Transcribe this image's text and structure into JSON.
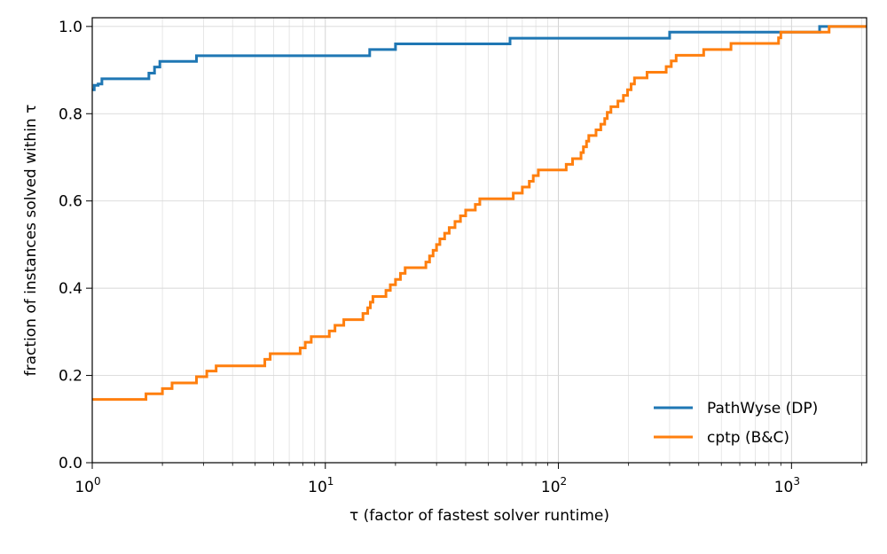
{
  "chart_data": {
    "type": "line",
    "title": "",
    "xlabel": "τ (factor of fastest solver runtime)",
    "ylabel": "fraction of instances solved within τ",
    "xscale": "log",
    "xlim": [
      1,
      2100
    ],
    "ylim": [
      0.0,
      1.02
    ],
    "grid": true,
    "legend_position": "lower-right",
    "x_ticks": [
      {
        "value": 1,
        "base": "10",
        "exp": "0"
      },
      {
        "value": 10,
        "base": "10",
        "exp": "1"
      },
      {
        "value": 100,
        "base": "10",
        "exp": "2"
      },
      {
        "value": 1000,
        "base": "10",
        "exp": "3"
      }
    ],
    "y_ticks": [
      {
        "value": 0.0,
        "label": "0.0"
      },
      {
        "value": 0.2,
        "label": "0.2"
      },
      {
        "value": 0.4,
        "label": "0.4"
      },
      {
        "value": 0.6,
        "label": "0.6"
      },
      {
        "value": 0.8,
        "label": "0.8"
      },
      {
        "value": 1.0,
        "label": "1.0"
      }
    ],
    "series": [
      {
        "name": "PathWyse (DP)",
        "color": "#1f77b4",
        "step": true,
        "points": [
          [
            1.0,
            0.855
          ],
          [
            1.02,
            0.865
          ],
          [
            1.06,
            0.868
          ],
          [
            1.1,
            0.88
          ],
          [
            1.75,
            0.893
          ],
          [
            1.85,
            0.907
          ],
          [
            1.95,
            0.92
          ],
          [
            2.8,
            0.933
          ],
          [
            15.5,
            0.947
          ],
          [
            20,
            0.96
          ],
          [
            62,
            0.973
          ],
          [
            300,
            0.987
          ],
          [
            1320,
            1.0
          ],
          [
            2100,
            1.0
          ]
        ]
      },
      {
        "name": "cptp (B&C)",
        "color": "#ff7f0e",
        "step": true,
        "points": [
          [
            1.0,
            0.145
          ],
          [
            1.7,
            0.158
          ],
          [
            2.0,
            0.17
          ],
          [
            2.2,
            0.183
          ],
          [
            2.8,
            0.197
          ],
          [
            3.1,
            0.21
          ],
          [
            3.4,
            0.222
          ],
          [
            5.5,
            0.237
          ],
          [
            5.8,
            0.25
          ],
          [
            7.8,
            0.263
          ],
          [
            8.2,
            0.276
          ],
          [
            8.7,
            0.289
          ],
          [
            10.4,
            0.302
          ],
          [
            11,
            0.315
          ],
          [
            12,
            0.328
          ],
          [
            14.5,
            0.342
          ],
          [
            15.2,
            0.355
          ],
          [
            15.6,
            0.368
          ],
          [
            16,
            0.381
          ],
          [
            18.2,
            0.395
          ],
          [
            19,
            0.408
          ],
          [
            20,
            0.42
          ],
          [
            21,
            0.434
          ],
          [
            22,
            0.447
          ],
          [
            27,
            0.46
          ],
          [
            28,
            0.474
          ],
          [
            29,
            0.487
          ],
          [
            30,
            0.5
          ],
          [
            31,
            0.513
          ],
          [
            32.5,
            0.526
          ],
          [
            34,
            0.539
          ],
          [
            36,
            0.553
          ],
          [
            38,
            0.566
          ],
          [
            40,
            0.579
          ],
          [
            44,
            0.592
          ],
          [
            46,
            0.605
          ],
          [
            64,
            0.618
          ],
          [
            70,
            0.632
          ],
          [
            75,
            0.645
          ],
          [
            78,
            0.658
          ],
          [
            82,
            0.671
          ],
          [
            108,
            0.684
          ],
          [
            115,
            0.697
          ],
          [
            125,
            0.711
          ],
          [
            128,
            0.724
          ],
          [
            132,
            0.737
          ],
          [
            135,
            0.75
          ],
          [
            145,
            0.763
          ],
          [
            152,
            0.776
          ],
          [
            158,
            0.789
          ],
          [
            162,
            0.803
          ],
          [
            168,
            0.816
          ],
          [
            180,
            0.829
          ],
          [
            190,
            0.842
          ],
          [
            198,
            0.855
          ],
          [
            205,
            0.868
          ],
          [
            212,
            0.882
          ],
          [
            240,
            0.895
          ],
          [
            290,
            0.908
          ],
          [
            305,
            0.921
          ],
          [
            320,
            0.934
          ],
          [
            420,
            0.947
          ],
          [
            550,
            0.961
          ],
          [
            880,
            0.974
          ],
          [
            900,
            0.987
          ],
          [
            1450,
            1.0
          ],
          [
            2100,
            1.0
          ]
        ]
      }
    ]
  }
}
